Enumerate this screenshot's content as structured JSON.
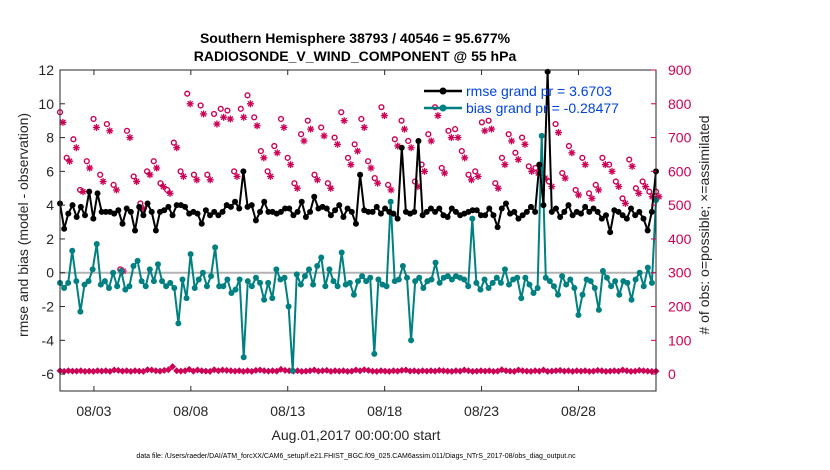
{
  "chart_data": {
    "type": "line",
    "title_line1": "Southern Hemisphere 38793 / 40546 = 95.677%",
    "title_line2": "RADIOSONDE_V_WIND_COMPONENT @ 55 hPa",
    "xlabel": "Aug.01,2017 00:00:00 start",
    "ylabel": "rmse and bias (model - observation)",
    "ylabel_right": "# of obs: o=possible; ×=assimilated",
    "footer": "data file: /Users/raeder/DAI/ATM_forcXX/CAM6_setup/f.e21.FHIST_BGC.f09_025.CAM6assim.011/Diags_NTrS_2017-08/obs_diag_output.nc",
    "x_range_days": [
      1.25,
      32.0
    ],
    "ylim": [
      -7,
      12
    ],
    "ylim_right": [
      -50,
      900
    ],
    "y_ticks": [
      -6,
      -4,
      -2,
      0,
      2,
      4,
      6,
      8,
      10,
      12
    ],
    "y_ticks_right": [
      0,
      100,
      200,
      300,
      400,
      500,
      600,
      700,
      800,
      900
    ],
    "x_ticks": [
      {
        "day": 3,
        "label": "08/03"
      },
      {
        "day": 8,
        "label": "08/08"
      },
      {
        "day": 13,
        "label": "08/13"
      },
      {
        "day": 18,
        "label": "08/18"
      },
      {
        "day": 23,
        "label": "08/23"
      },
      {
        "day": 28,
        "label": "08/28"
      }
    ],
    "colors": {
      "rmse": "#000000",
      "bias": "#008080",
      "obs": "#cc0055",
      "zero_line": "#b3b3b3",
      "legend_text": "#0044dd",
      "right_axis": "#cc0055"
    },
    "series": [
      {
        "name": "rmse",
        "legend": "rmse grand pr = 3.6703",
        "values": [
          4.1,
          2.6,
          3.5,
          4.0,
          3.3,
          3.9,
          3.4,
          4.8,
          3.2,
          4.7,
          3.6,
          3.6,
          3.6,
          3.5,
          3.7,
          2.9,
          3.8,
          3.6,
          2.5,
          3.9,
          3.4,
          4.1,
          3.6,
          2.5,
          3.6,
          3.7,
          3.9,
          3.4,
          4.0,
          4.0,
          3.9,
          3.5,
          3.6,
          3.5,
          2.9,
          3.7,
          3.4,
          3.6,
          3.4,
          3.6,
          4.0,
          3.9,
          4.2,
          3.8,
          6.0,
          3.9,
          4.0,
          3.1,
          3.6,
          4.2,
          3.6,
          3.6,
          3.5,
          3.6,
          3.8,
          3.8,
          3.4,
          3.6,
          4.2,
          3.3,
          3.6,
          4.5,
          3.8,
          3.9,
          3.8,
          3.4,
          3.7,
          4.0,
          3.3,
          3.8,
          3.6,
          2.9,
          5.8,
          3.7,
          3.6,
          3.6,
          3.9,
          3.5,
          3.8,
          3.6,
          3.5,
          3.2,
          7.4,
          3.6,
          3.5,
          3.6,
          7.8,
          3.4,
          3.6,
          3.8,
          3.6,
          3.8,
          3.4,
          3.3,
          3.8,
          3.6,
          3.4,
          3.5,
          3.6,
          3.7,
          3.7,
          3.4,
          3.4,
          3.8,
          3.4,
          2.7,
          3.8,
          4.1,
          3.5,
          3.6,
          3.2,
          3.4,
          3.6,
          3.9,
          3.6,
          6.4,
          4.0,
          11.9,
          3.6,
          3.8,
          3.3,
          3.6,
          4.0,
          3.4,
          3.6,
          3.5,
          3.9,
          3.6,
          3.8,
          3.6,
          3.2,
          3.4,
          2.4,
          3.7,
          3.6,
          3.4,
          3.2,
          3.8,
          3.4,
          3.6,
          3.2,
          2.5,
          3.6,
          6.0
        ]
      },
      {
        "name": "bias",
        "legend": "bias grand pr = -0.28477",
        "values": [
          -0.6,
          -0.9,
          -0.6,
          1.3,
          -0.5,
          -2.3,
          -0.7,
          -0.5,
          0.2,
          1.7,
          -0.7,
          -0.5,
          -0.9,
          0.0,
          -0.8,
          0.1,
          -1.0,
          -0.8,
          0.4,
          0.7,
          -0.5,
          -0.8,
          0.2,
          -0.5,
          0.5,
          -0.5,
          -0.8,
          -0.6,
          -0.9,
          -3.0,
          -0.4,
          -1.5,
          1.1,
          -0.9,
          -0.4,
          0.0,
          -0.8,
          -0.2,
          1.5,
          -0.8,
          -0.8,
          -0.4,
          -1.2,
          -1.0,
          -0.4,
          -5.0,
          -0.5,
          -0.8,
          -0.3,
          -0.6,
          -1.6,
          -0.6,
          -1.5,
          0.2,
          -0.4,
          -0.3,
          -2.0,
          -5.8,
          -0.1,
          -0.7,
          -0.2,
          0.2,
          -0.7,
          0.4,
          0.9,
          -0.8,
          0.2,
          -0.5,
          -0.8,
          1.2,
          -0.7,
          -0.6,
          -1.3,
          -0.5,
          -0.2,
          -0.5,
          -0.3,
          -4.8,
          -0.4,
          -0.7,
          -0.8,
          4.2,
          -0.5,
          -0.4,
          0.4,
          -0.3,
          -4.0,
          -0.5,
          -0.3,
          -0.9,
          -0.5,
          -0.4,
          0.6,
          -0.6,
          -0.3,
          -0.2,
          -0.4,
          -0.2,
          -0.3,
          -0.4,
          -0.8,
          3.2,
          -0.6,
          -1.0,
          -0.4,
          -0.9,
          -0.6,
          -0.3,
          -0.6,
          0.2,
          -0.7,
          -0.4,
          -0.3,
          -1.5,
          -0.3,
          -0.7,
          -1.2,
          -0.9,
          8.1,
          -0.3,
          -0.5,
          -0.8,
          -1.3,
          -0.2,
          -0.7,
          -0.4,
          -0.9,
          -2.5,
          -1.3,
          -0.4,
          -0.5,
          -0.9,
          -2.2,
          0.1,
          -0.3,
          -0.8,
          -0.5,
          -1.3,
          -0.5,
          -0.6,
          -1.6,
          -0.4,
          0.0,
          -0.8,
          0.3,
          -0.6,
          4.3
        ]
      },
      {
        "name": "obs_possible",
        "marker": "circle",
        "values": [
          775,
          640,
          695,
          545,
          630,
          755,
          590,
          740,
          560,
          310,
          720,
          585,
          505,
          600,
          630,
          565,
          545,
          685,
          600,
          830,
          590,
          795,
          590,
          770,
          785,
          780,
          600,
          785,
          825,
          760,
          660,
          600,
          675,
          755,
          640,
          565,
          710,
          750,
          590,
          730,
          565,
          700,
          775,
          640,
          680,
          755,
          630,
          580,
          790,
          560,
          695,
          750,
          690,
          570,
          620,
          710,
          790,
          610,
          720,
          725,
          660,
          590,
          600,
          745,
          750,
          565,
          640,
          710,
          655,
          700,
          615,
          610,
          595,
          570,
          740,
          595,
          675,
          545,
          640,
          535,
          560,
          640,
          620,
          570,
          520,
          635,
          550,
          570,
          540,
          540
        ]
      },
      {
        "name": "obs_assimilated",
        "marker": "asterisk",
        "values": [
          745,
          630,
          670,
          540,
          610,
          730,
          570,
          720,
          545,
          305,
          700,
          570,
          490,
          590,
          610,
          555,
          535,
          670,
          585,
          800,
          575,
          770,
          575,
          740,
          760,
          755,
          585,
          760,
          800,
          735,
          640,
          585,
          655,
          730,
          620,
          550,
          690,
          725,
          575,
          705,
          550,
          680,
          750,
          620,
          660,
          730,
          610,
          565,
          765,
          545,
          675,
          725,
          670,
          555,
          600,
          690,
          765,
          595,
          700,
          700,
          640,
          575,
          585,
          720,
          725,
          550,
          620,
          690,
          635,
          680,
          600,
          595,
          580,
          555,
          715,
          580,
          655,
          530,
          620,
          520,
          545,
          620,
          600,
          555,
          505,
          615,
          535,
          555,
          525,
          525
        ]
      },
      {
        "name": "obs_count_baseline",
        "marker": "diamond",
        "values": [
          10,
          8,
          10,
          9,
          9,
          10,
          8,
          9,
          8,
          10,
          9,
          10,
          8,
          12,
          11,
          9,
          10,
          8,
          10,
          9,
          8,
          13,
          12,
          10,
          9,
          11,
          13,
          22,
          10,
          9,
          10,
          14,
          9,
          12,
          10,
          9,
          8,
          13,
          10,
          12,
          11,
          10,
          9,
          10,
          8,
          10,
          8,
          11,
          12,
          10,
          9,
          10,
          9,
          14,
          11,
          10,
          9,
          10,
          8,
          9,
          10,
          12,
          9,
          10,
          11,
          8,
          10,
          9,
          10,
          8,
          9,
          12,
          10,
          13,
          11,
          9,
          8,
          10,
          9,
          8,
          10,
          9,
          11,
          12,
          9,
          10,
          8,
          10,
          9,
          10,
          9,
          11,
          10,
          9,
          8,
          10,
          9,
          12,
          10,
          8,
          9,
          10,
          9,
          10,
          8,
          9,
          13,
          10,
          9,
          8,
          12,
          10,
          9,
          8,
          10,
          9,
          12,
          8,
          9,
          10,
          11,
          9,
          10,
          8,
          10,
          9,
          10,
          8,
          9,
          11,
          10,
          8,
          9,
          10,
          9,
          12,
          10,
          8,
          9,
          11,
          10,
          9,
          8,
          9
        ]
      }
    ]
  }
}
